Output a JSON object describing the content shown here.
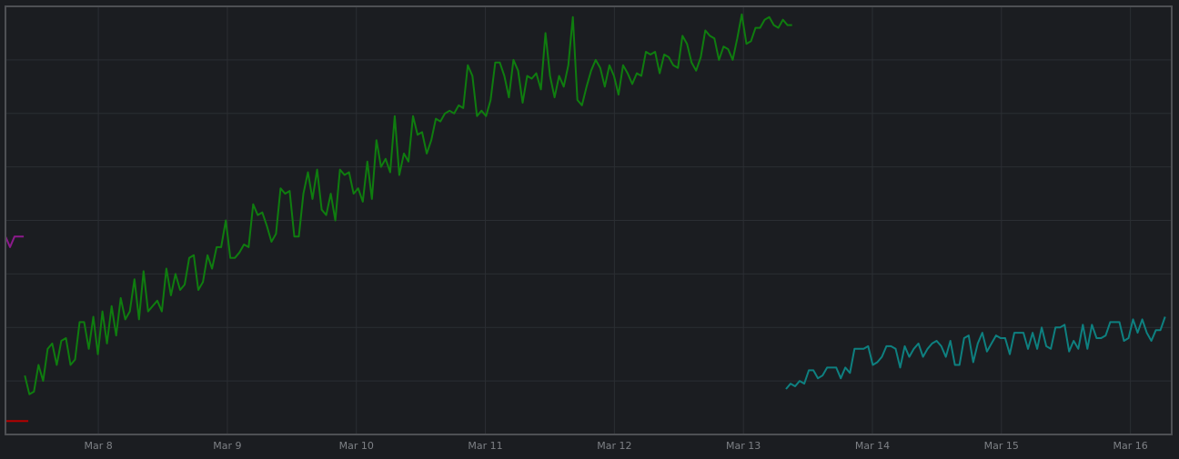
{
  "chart_data": {
    "type": "line",
    "title": "",
    "xlabel": "",
    "ylabel": "",
    "grid": true,
    "x_ticks": [
      "Mar 8",
      "Mar 9",
      "Mar 10",
      "Mar 11",
      "Mar 12",
      "Mar 13",
      "Mar 14",
      "Mar 15",
      "Mar 16"
    ],
    "xlim": [
      7.28,
      16.32
    ],
    "ylim": [
      0,
      8
    ],
    "series": [
      {
        "color": "#0f7d0f",
        "x_start": 7.43,
        "x_step": 0.0354,
        "values": [
          1.1,
          0.75,
          0.8,
          1.3,
          1.0,
          1.6,
          1.7,
          1.3,
          1.75,
          1.8,
          1.3,
          1.4,
          2.1,
          2.1,
          1.6,
          2.2,
          1.5,
          2.3,
          1.7,
          2.4,
          1.85,
          2.55,
          2.15,
          2.3,
          2.9,
          2.15,
          3.05,
          2.3,
          2.4,
          2.5,
          2.3,
          3.1,
          2.6,
          3.0,
          2.7,
          2.8,
          3.3,
          3.35,
          2.7,
          2.85,
          3.35,
          3.1,
          3.5,
          3.5,
          4.0,
          3.3,
          3.3,
          3.4,
          3.55,
          3.5,
          4.3,
          4.1,
          4.15,
          3.9,
          3.6,
          3.75,
          4.6,
          4.5,
          4.55,
          3.7,
          3.7,
          4.5,
          4.9,
          4.4,
          4.95,
          4.2,
          4.1,
          4.5,
          4.0,
          4.95,
          4.85,
          4.9,
          4.5,
          4.6,
          4.35,
          5.1,
          4.4,
          5.5,
          5.0,
          5.15,
          4.9,
          5.95,
          4.85,
          5.25,
          5.1,
          5.95,
          5.6,
          5.65,
          5.25,
          5.5,
          5.9,
          5.85,
          6.0,
          6.05,
          6.0,
          6.15,
          6.1,
          6.9,
          6.7,
          5.95,
          6.05,
          5.95,
          6.25,
          6.95,
          6.95,
          6.7,
          6.3,
          7.0,
          6.8,
          6.2,
          6.7,
          6.65,
          6.75,
          6.45,
          7.5,
          6.7,
          6.3,
          6.7,
          6.5,
          6.9,
          7.8,
          6.25,
          6.15,
          6.5,
          6.8,
          7.0,
          6.85,
          6.5,
          6.9,
          6.7,
          6.35,
          6.9,
          6.75,
          6.55,
          6.75,
          6.7,
          7.15,
          7.1,
          7.15,
          6.75,
          7.1,
          7.05,
          6.9,
          6.85,
          7.45,
          7.3,
          6.95,
          6.8,
          7.05,
          7.55,
          7.45,
          7.4,
          7.0,
          7.25,
          7.2,
          7.0,
          7.4,
          7.85,
          7.3,
          7.35,
          7.6,
          7.6,
          7.75,
          7.8,
          7.65,
          7.6,
          7.75,
          7.65,
          7.65
        ]
      },
      {
        "color": "#0e8080",
        "x_start": 13.33,
        "x_step": 0.0354,
        "values": [
          0.85,
          0.95,
          0.9,
          1.0,
          0.95,
          1.2,
          1.2,
          1.05,
          1.1,
          1.25,
          1.25,
          1.25,
          1.05,
          1.25,
          1.15,
          1.6,
          1.6,
          1.6,
          1.65,
          1.3,
          1.35,
          1.45,
          1.65,
          1.65,
          1.6,
          1.25,
          1.65,
          1.45,
          1.6,
          1.7,
          1.45,
          1.6,
          1.7,
          1.75,
          1.65,
          1.45,
          1.75,
          1.3,
          1.3,
          1.8,
          1.85,
          1.35,
          1.7,
          1.9,
          1.55,
          1.7,
          1.85,
          1.8,
          1.8,
          1.5,
          1.9,
          1.9,
          1.9,
          1.6,
          1.9,
          1.6,
          2.0,
          1.65,
          1.6,
          2.0,
          2.0,
          2.05,
          1.55,
          1.75,
          1.6,
          2.05,
          1.6,
          2.05,
          1.8,
          1.8,
          1.85,
          2.1,
          2.1,
          2.1,
          1.75,
          1.8,
          2.15,
          1.9,
          2.15,
          1.9,
          1.75,
          1.95,
          1.95,
          2.2
        ]
      },
      {
        "color": "#8c1a8c",
        "x_start": 7.28,
        "x_step": 0.0354,
        "values": [
          3.7,
          3.5,
          3.7,
          3.7,
          3.7
        ]
      },
      {
        "color": "#b40000",
        "x_start": 7.28,
        "x_step": 0.0354,
        "values": [
          0.25,
          0.25,
          0.25,
          0.25,
          0.25,
          0.25
        ]
      }
    ]
  }
}
